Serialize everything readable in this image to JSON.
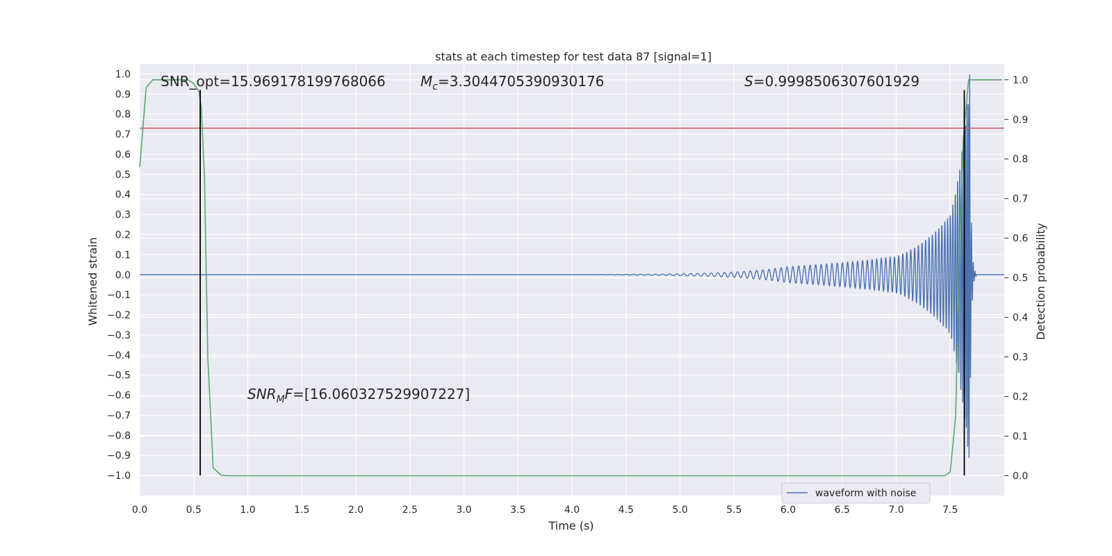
{
  "chart_data": {
    "type": "line",
    "title": "stats at each timestep for test data 87 [signal=1]",
    "xlabel": "Time (s)",
    "ylabel_left": "Whitened strain",
    "ylabel_right": "Detection probability",
    "xlim": [
      0.0,
      8.0
    ],
    "ylim_left": [
      -1.1,
      1.05
    ],
    "ylim_right": [
      -0.05,
      1.04
    ],
    "x_ticks": [
      "0.0",
      "0.5",
      "1.0",
      "1.5",
      "2.0",
      "2.5",
      "3.0",
      "3.5",
      "4.0",
      "4.5",
      "5.0",
      "5.5",
      "6.0",
      "6.5",
      "7.0",
      "7.5"
    ],
    "y_left_ticks": [
      "1.0",
      "0.9",
      "0.8",
      "0.7",
      "0.6",
      "0.5",
      "0.4",
      "0.3",
      "0.2",
      "0.1",
      "0.0",
      "−0.1",
      "−0.2",
      "−0.3",
      "−0.4",
      "−0.5",
      "−0.6",
      "−0.7",
      "−0.8",
      "−0.9",
      "−1.0"
    ],
    "y_right_ticks": [
      "1.0",
      "0.9",
      "0.8",
      "0.7",
      "0.6",
      "0.5",
      "0.4",
      "0.3",
      "0.2",
      "0.1",
      "0.0"
    ],
    "grid": true,
    "legend_position": "bottom-right",
    "legend": [
      "waveform with noise"
    ],
    "annotations": {
      "snr_opt": "SNR_opt=15.969178199768066",
      "mc_symbol": "M",
      "mc_sub": "c",
      "mc_value": "=3.3044705390930176",
      "s_symbol": "S",
      "s_value": "=0.9998506307601929",
      "snrmf_symbol": "SNR",
      "snrmf_sub": "M",
      "snrmf_symbol2": "F",
      "snrmf_value": "=[16.060327529907227]"
    },
    "series": [
      {
        "name": "waveform with noise",
        "axis": "left",
        "color": "#4c72b0",
        "description_points": {
          "t_start_visible": 4.8,
          "t_merger": 7.68,
          "f_start_hz": 15,
          "f_end_hz": 60,
          "amp_at_start": 0.003,
          "amp_at_6s": 0.04,
          "amp_at_7s": 0.09,
          "amp_at_7_5s": 0.3,
          "amp_peak": 1.0
        }
      },
      {
        "axis": "right",
        "color": "#55a868",
        "x": [
          0.0,
          0.06,
          0.12,
          0.45,
          0.5,
          0.55,
          0.57,
          0.6,
          0.63,
          0.68,
          0.75,
          0.8,
          7.45,
          7.5,
          7.55,
          7.58,
          7.62,
          7.67,
          7.72,
          7.8,
          7.98
        ],
        "y": [
          0.78,
          0.98,
          1.0,
          1.0,
          0.99,
          0.97,
          0.93,
          0.75,
          0.3,
          0.02,
          0.002,
          0.0,
          0.0,
          0.01,
          0.15,
          0.5,
          0.85,
          1.0,
          1.0,
          1.0,
          1.0
        ]
      },
      {
        "axis": "left",
        "color": "#c44e52",
        "type": "hline",
        "y": 0.73
      }
    ],
    "vlines": [
      {
        "x": 0.56,
        "color": "#000000",
        "y_top": 0.92,
        "y_bottom": -1.0
      },
      {
        "x": 7.63,
        "color": "#000000",
        "y_top": 0.92,
        "y_bottom": -1.0
      }
    ]
  },
  "colors": {
    "background": "#eaeaf2",
    "grid": "#ffffff",
    "strain": "#4c72b0",
    "probability": "#55a868",
    "threshold": "#c44e52",
    "vline": "#000000"
  }
}
